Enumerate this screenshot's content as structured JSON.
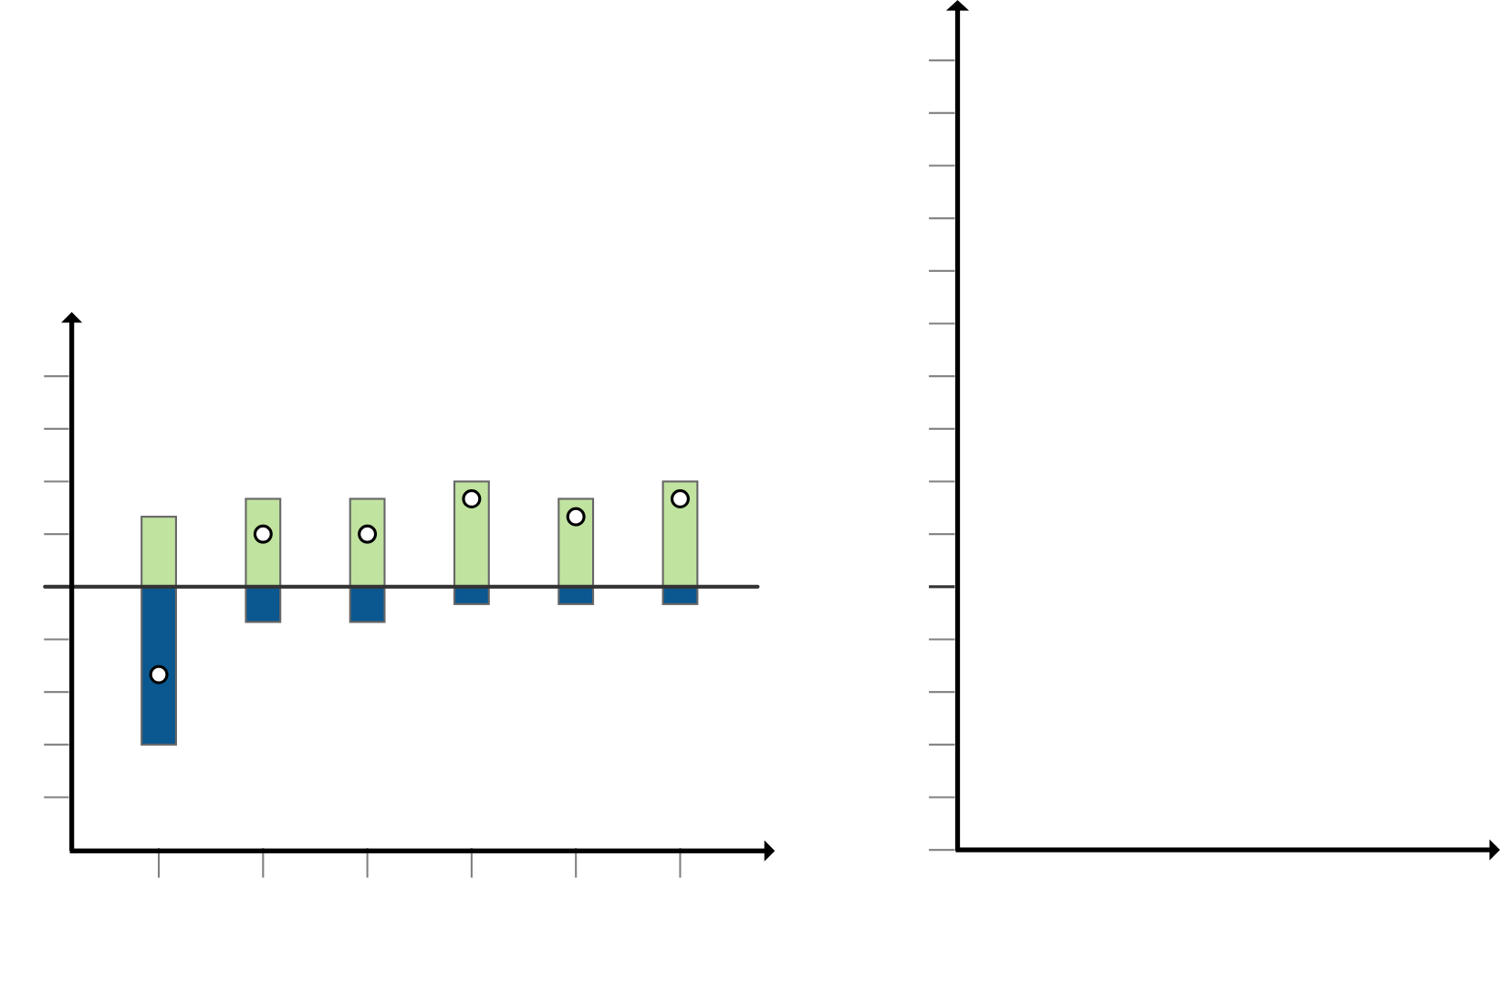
{
  "chart_data": [
    {
      "type": "bar",
      "stacked_diverging": true,
      "categories": [
        "",
        "",
        "",
        "",
        "",
        ""
      ],
      "series": [
        {
          "values": [
            1.33,
            1.67,
            1.67,
            2,
            1.67,
            2
          ],
          "color": "#c0e3a0"
        },
        {
          "values": [
            -3,
            -0.67,
            -0.67,
            -0.33,
            -0.33,
            -0.33
          ],
          "color": "#0b578f"
        }
      ],
      "net_markers": [
        -1.67,
        1,
        1,
        1.67,
        1.33,
        1.67
      ],
      "ylim": [
        -5,
        5.2
      ],
      "yticks": [
        -4,
        -3,
        -2,
        -1,
        0,
        1,
        2,
        3,
        4
      ],
      "title": "",
      "xlabel": "",
      "ylabel": "",
      "grid": false
    },
    {
      "type": "bar",
      "categories": [],
      "series": [],
      "ylim": [
        -5,
        10.2
      ],
      "yticks": [
        -5,
        -4,
        -3,
        -2,
        -1,
        0,
        1,
        2,
        3,
        4,
        5,
        6,
        7,
        8,
        9,
        10
      ],
      "title": "",
      "xlabel": "",
      "ylabel": "",
      "grid": false
    }
  ],
  "colors": {
    "axis": "#000000",
    "tick": "#808080",
    "zero_line": "#333333",
    "bar_stroke": "#666666"
  }
}
